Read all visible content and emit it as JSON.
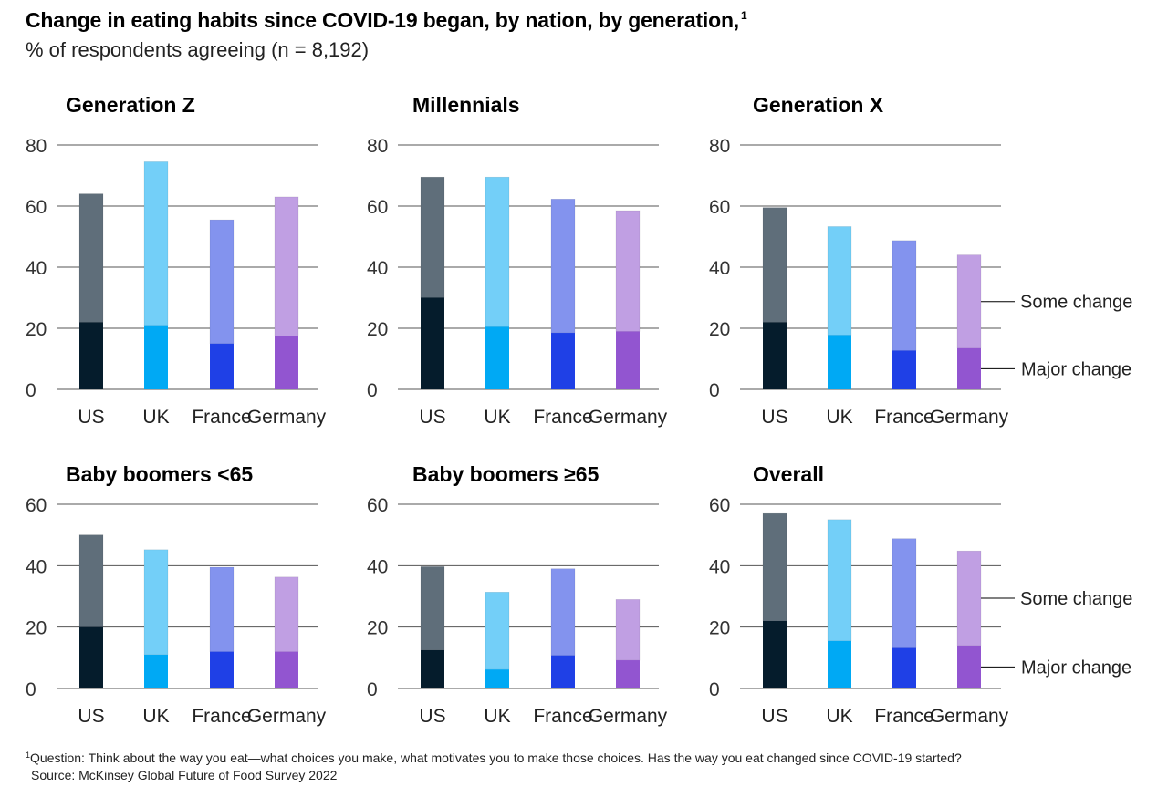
{
  "header": {
    "title": "Change in eating habits since COVID-19 began, by nation, by generation,",
    "title_note": "1",
    "subtitle": "% of respondents agreeing (n = 8,192)"
  },
  "footer": {
    "note_marker": "1",
    "question": "Question: Think about the way you eat—what choices you make, what motivates you to make those choices. Has the way you eat changed since COVID-19 started?",
    "source": "Source: McKinsey Global Future of Food Survey 2022"
  },
  "legend": {
    "some_change": "Some change",
    "major_change": "Major change"
  },
  "colors": {
    "US": {
      "major": "#051c2c",
      "some": "#5f6e7a"
    },
    "UK": {
      "major": "#00a9f4",
      "some": "#73cff8"
    },
    "France": {
      "major": "#1f40e6",
      "some": "#8393ee"
    },
    "Germany": {
      "major": "#9255d0",
      "some": "#c09fe3"
    },
    "gridline": "#555555",
    "axis_text": "#333333"
  },
  "chart_data": [
    {
      "type": "bar",
      "stacked": true,
      "title": "Generation Z",
      "categories": [
        "US",
        "UK",
        "France",
        "Germany"
      ],
      "series": [
        {
          "name": "Major change",
          "values": [
            22,
            21,
            15,
            17.5
          ]
        },
        {
          "name": "Some change",
          "values": [
            42,
            53.5,
            40.5,
            45.5
          ]
        }
      ],
      "yticks": [
        "80",
        "60",
        "40",
        "20",
        "0"
      ],
      "ylim": [
        0,
        80
      ],
      "legend": false
    },
    {
      "type": "bar",
      "stacked": true,
      "title": "Millennials",
      "categories": [
        "US",
        "UK",
        "France",
        "Germany"
      ],
      "series": [
        {
          "name": "Major change",
          "values": [
            30,
            20.5,
            18.5,
            19
          ]
        },
        {
          "name": "Some change",
          "values": [
            39.5,
            49,
            43.8,
            39.5
          ]
        }
      ],
      "yticks": [
        "80",
        "60",
        "40",
        "20",
        "0"
      ],
      "ylim": [
        0,
        80
      ],
      "legend": false
    },
    {
      "type": "bar",
      "stacked": true,
      "title": "Generation X",
      "categories": [
        "US",
        "UK",
        "France",
        "Germany"
      ],
      "series": [
        {
          "name": "Major change",
          "values": [
            22,
            17.8,
            12.7,
            13.5
          ]
        },
        {
          "name": "Some change",
          "values": [
            37.5,
            35.5,
            36,
            30.5
          ]
        }
      ],
      "yticks": [
        "80",
        "60",
        "40",
        "20",
        "0"
      ],
      "ylim": [
        0,
        80
      ],
      "legend": true
    },
    {
      "type": "bar",
      "stacked": true,
      "title": "Baby boomers <65",
      "categories": [
        "US",
        "UK",
        "France",
        "Germany"
      ],
      "series": [
        {
          "name": "Major change",
          "values": [
            20,
            11,
            12,
            12
          ]
        },
        {
          "name": "Some change",
          "values": [
            30,
            34.2,
            27.5,
            24.3
          ]
        }
      ],
      "yticks": [
        "60",
        "40",
        "20",
        "0"
      ],
      "ylim": [
        0,
        60
      ],
      "legend": false
    },
    {
      "type": "bar",
      "stacked": true,
      "title": "Baby boomers ≥65",
      "categories": [
        "US",
        "UK",
        "France",
        "Germany"
      ],
      "series": [
        {
          "name": "Major change",
          "values": [
            12.5,
            6.2,
            10.8,
            9.2
          ]
        },
        {
          "name": "Some change",
          "values": [
            27.2,
            25.2,
            28.2,
            19.8
          ]
        }
      ],
      "yticks": [
        "60",
        "40",
        "20",
        "0"
      ],
      "ylim": [
        0,
        60
      ],
      "legend": false
    },
    {
      "type": "bar",
      "stacked": true,
      "title": "Overall",
      "categories": [
        "US",
        "UK",
        "France",
        "Germany"
      ],
      "series": [
        {
          "name": "Major change",
          "values": [
            22,
            15.5,
            13.2,
            14
          ]
        },
        {
          "name": "Some change",
          "values": [
            35,
            39.5,
            35.6,
            30.8
          ]
        }
      ],
      "yticks": [
        "60",
        "40",
        "20",
        "0"
      ],
      "ylim": [
        0,
        60
      ],
      "legend": true
    }
  ]
}
